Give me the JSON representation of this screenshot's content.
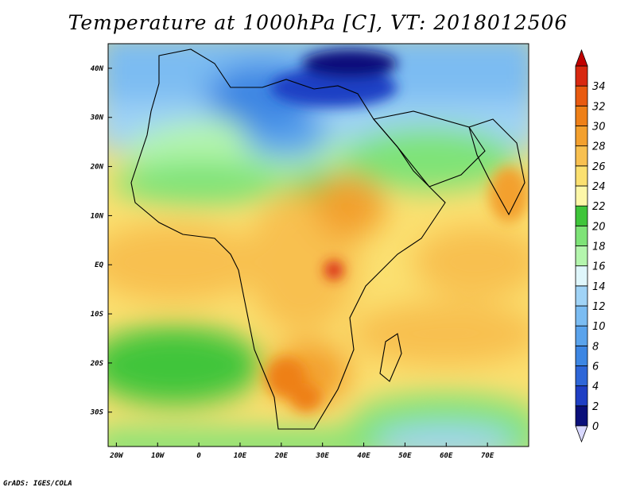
{
  "title": "Temperature at 1000hPa [C], VT: 2018012506",
  "credit": "GrADS: IGES/COLA",
  "map": {
    "type": "filled-contour-map",
    "variable": "Temperature at 1000hPa",
    "units": "C",
    "valid_time": "2018012506",
    "lon_range": [
      -22,
      80
    ],
    "lat_range": [
      -37,
      45
    ],
    "lon_ticks": [
      {
        "value": -20,
        "label": "20W"
      },
      {
        "value": -10,
        "label": "10W"
      },
      {
        "value": 0,
        "label": "0"
      },
      {
        "value": 10,
        "label": "10E"
      },
      {
        "value": 20,
        "label": "20E"
      },
      {
        "value": 30,
        "label": "30E"
      },
      {
        "value": 40,
        "label": "40E"
      },
      {
        "value": 50,
        "label": "50E"
      },
      {
        "value": 60,
        "label": "60E"
      },
      {
        "value": 70,
        "label": "70E"
      }
    ],
    "lat_ticks": [
      {
        "value": 40,
        "label": "40N"
      },
      {
        "value": 30,
        "label": "30N"
      },
      {
        "value": 20,
        "label": "20N"
      },
      {
        "value": 10,
        "label": "10N"
      },
      {
        "value": 0,
        "label": "EQ"
      },
      {
        "value": -10,
        "label": "10S"
      },
      {
        "value": -20,
        "label": "20S"
      },
      {
        "value": -30,
        "label": "30S"
      }
    ]
  },
  "colorbar": {
    "levels": [
      "0",
      "2",
      "4",
      "6",
      "8",
      "10",
      "12",
      "14",
      "16",
      "18",
      "20",
      "22",
      "24",
      "26",
      "28",
      "30",
      "32",
      "34"
    ],
    "colors": [
      "#0a0f7a",
      "#1f3fc4",
      "#2e66d8",
      "#3d86e3",
      "#5aa3ec",
      "#7bbcf2",
      "#a0d3f6",
      "#dff6fb",
      "#b4f5ad",
      "#7ee377",
      "#3fc53a",
      "#fdf7a8",
      "#fbe070",
      "#f8c050",
      "#f3a02e",
      "#ee8018",
      "#e85a10",
      "#d82810"
    ],
    "min_color": "#d8d8ff",
    "max_color": "#c00000"
  }
}
